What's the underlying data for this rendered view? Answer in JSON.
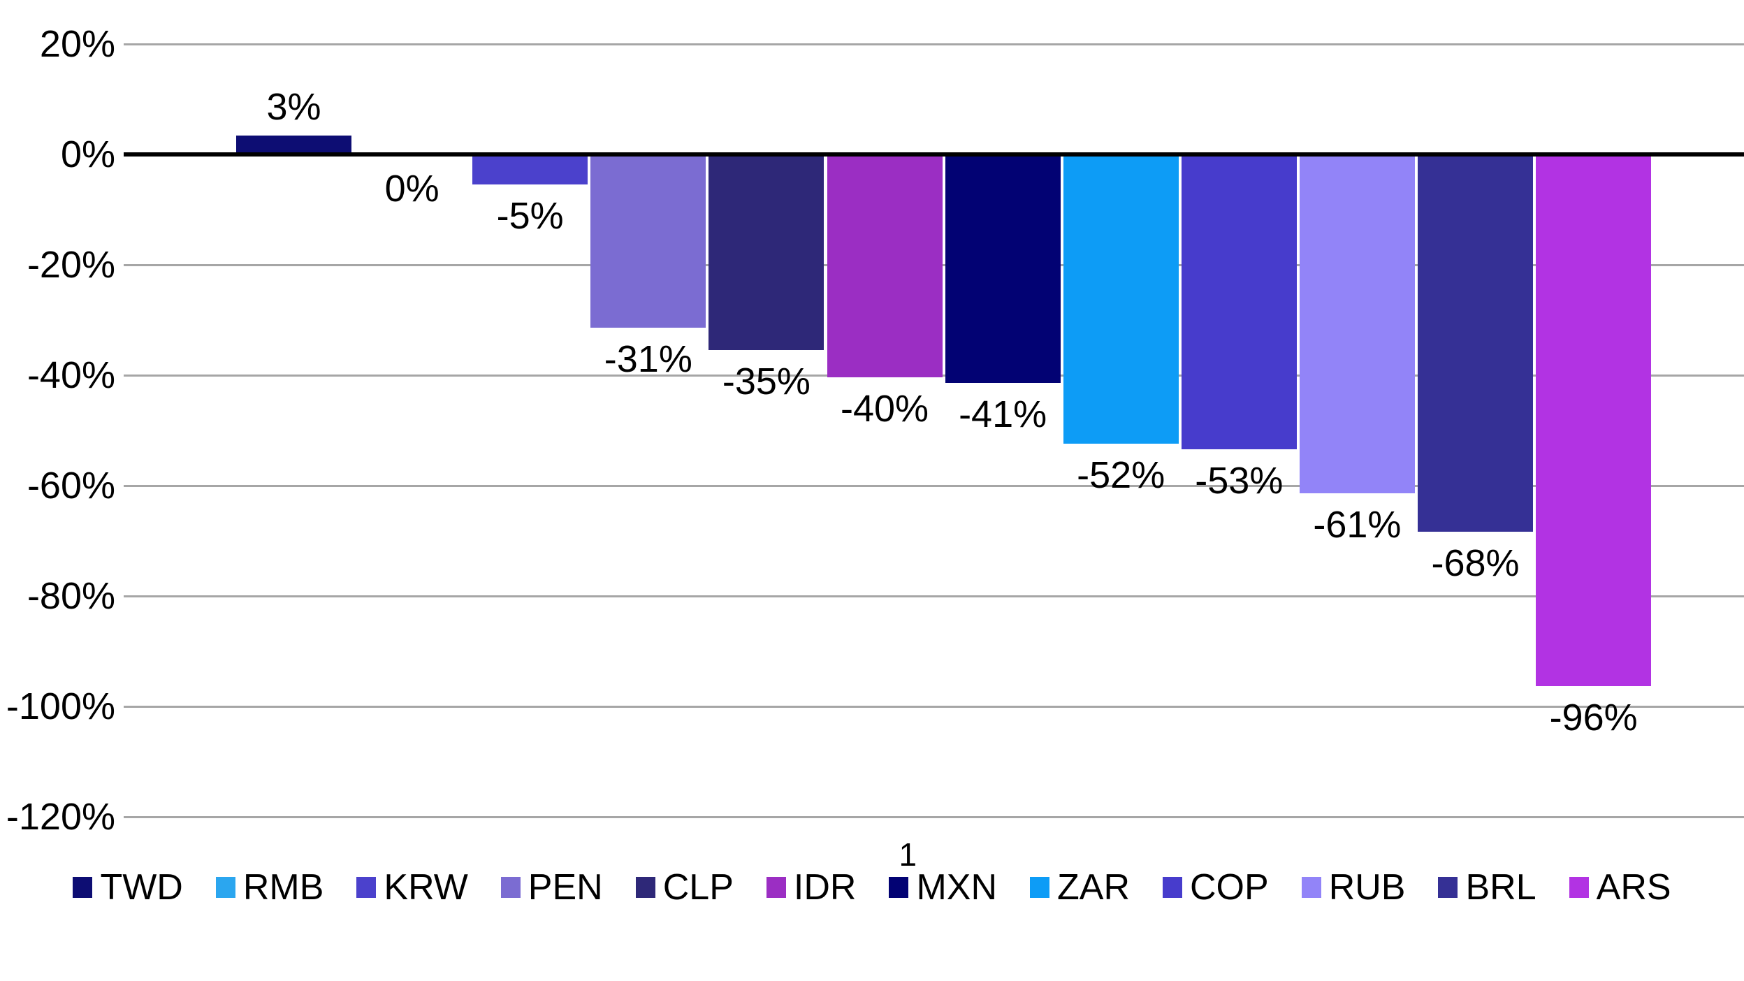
{
  "chart_data": {
    "type": "bar",
    "title": "",
    "xlabel": "",
    "ylabel": "",
    "categories": [
      "TWD",
      "RMB",
      "KRW",
      "PEN",
      "CLP",
      "IDR",
      "MXN",
      "ZAR",
      "COP",
      "RUB",
      "BRL",
      "ARS"
    ],
    "values": [
      3,
      0,
      -5,
      -31,
      -35,
      -40,
      -41,
      -52,
      -53,
      -61,
      -68,
      -96
    ],
    "value_labels": [
      "3%",
      "0%",
      "-5%",
      "-31%",
      "-35%",
      "-40%",
      "-41%",
      "-52%",
      "-53%",
      "-61%",
      "-68%",
      "-96%"
    ],
    "colors": [
      "#0D0D73",
      "#2BA6EF",
      "#4B41CC",
      "#7B6CD2",
      "#2E2878",
      "#9B2EC3",
      "#020273",
      "#0D9CF6",
      "#473CCC",
      "#9284F8",
      "#353095",
      "#B233E3"
    ],
    "ylim": [
      -120,
      20
    ],
    "yticks": [
      20,
      0,
      -20,
      -40,
      -60,
      -80,
      -100,
      -120
    ],
    "ytick_labels": [
      "20%",
      "0%",
      "-20%",
      "-40%",
      "-60%",
      "-80%",
      "-100%",
      "-120%"
    ],
    "grid": "horizontal",
    "gridline_color": "#A6A6A6",
    "axis_line_color": "#000000",
    "text_color": "#000000",
    "legend_position": "bottom",
    "legend": [
      {
        "label": "TWD",
        "color": "#0D0D73",
        "footnote": ""
      },
      {
        "label": "RMB",
        "color": "#2BA6EF",
        "footnote": ""
      },
      {
        "label": "KRW",
        "color": "#4B41CC",
        "footnote": ""
      },
      {
        "label": "PEN",
        "color": "#7B6CD2",
        "footnote": ""
      },
      {
        "label": "CLP",
        "color": "#2E2878",
        "footnote": ""
      },
      {
        "label": "IDR",
        "color": "#9B2EC3",
        "footnote": ""
      },
      {
        "label": "MXN",
        "color": "#020273",
        "footnote": "1"
      },
      {
        "label": "ZAR",
        "color": "#0D9CF6",
        "footnote": ""
      },
      {
        "label": "COP",
        "color": "#473CCC",
        "footnote": ""
      },
      {
        "label": "RUB",
        "color": "#9284F8",
        "footnote": ""
      },
      {
        "label": "BRL",
        "color": "#353095",
        "footnote": ""
      },
      {
        "label": "ARS",
        "color": "#B233E3",
        "footnote": ""
      }
    ]
  }
}
